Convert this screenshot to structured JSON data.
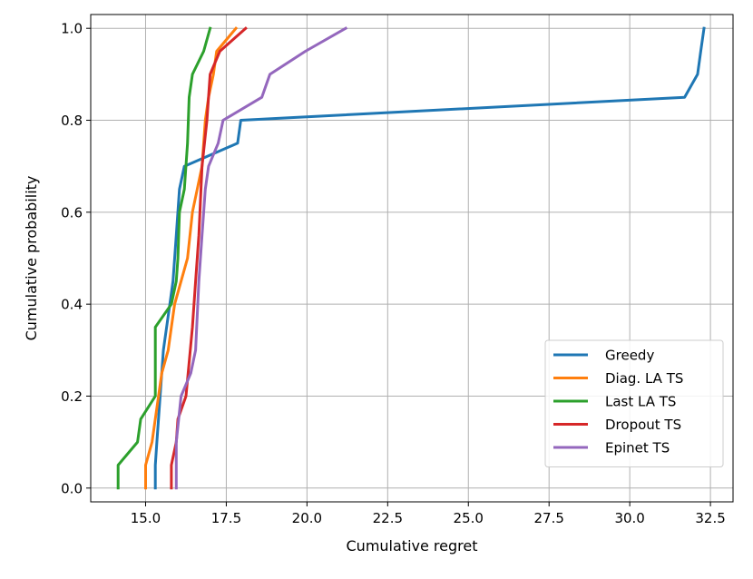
{
  "chart_data": {
    "type": "line",
    "title": "",
    "xlabel": "Cumulative regret",
    "ylabel": "Cumulative probability",
    "xlim": [
      13.3,
      33.2
    ],
    "ylim": [
      -0.03,
      1.03
    ],
    "xticks": [
      15.0,
      17.5,
      20.0,
      22.5,
      25.0,
      27.5,
      30.0,
      32.5
    ],
    "xtick_labels": [
      "15.0",
      "17.5",
      "20.0",
      "22.5",
      "25.0",
      "27.5",
      "30.0",
      "32.5"
    ],
    "yticks": [
      0.0,
      0.2,
      0.4,
      0.6,
      0.8,
      1.0
    ],
    "ytick_labels": [
      "0.0",
      "0.2",
      "0.4",
      "0.6",
      "0.8",
      "1.0"
    ],
    "grid": true,
    "legend_position": "lower-right",
    "series": [
      {
        "name": "Greedy",
        "color": "#1f77b4",
        "points": [
          [
            15.3,
            0.0
          ],
          [
            15.3,
            0.05
          ],
          [
            15.35,
            0.1
          ],
          [
            15.45,
            0.2
          ],
          [
            15.55,
            0.3
          ],
          [
            15.75,
            0.4
          ],
          [
            15.85,
            0.45
          ],
          [
            15.95,
            0.55
          ],
          [
            16.05,
            0.65
          ],
          [
            16.2,
            0.7
          ],
          [
            17.85,
            0.75
          ],
          [
            17.95,
            0.8
          ],
          [
            31.7,
            0.85
          ],
          [
            32.1,
            0.9
          ],
          [
            32.2,
            0.95
          ],
          [
            32.3,
            1.0
          ]
        ]
      },
      {
        "name": "Diag. LA TS",
        "color": "#ff7f0e",
        "points": [
          [
            15.0,
            0.0
          ],
          [
            15.0,
            0.05
          ],
          [
            15.2,
            0.1
          ],
          [
            15.5,
            0.25
          ],
          [
            15.7,
            0.3
          ],
          [
            15.8,
            0.35
          ],
          [
            15.9,
            0.4
          ],
          [
            16.1,
            0.45
          ],
          [
            16.3,
            0.5
          ],
          [
            16.45,
            0.6
          ],
          [
            16.6,
            0.65
          ],
          [
            16.75,
            0.7
          ],
          [
            16.85,
            0.8
          ],
          [
            16.95,
            0.85
          ],
          [
            17.1,
            0.9
          ],
          [
            17.2,
            0.95
          ],
          [
            17.8,
            1.0
          ]
        ]
      },
      {
        "name": "Last LA TS",
        "color": "#2ca02c",
        "points": [
          [
            14.15,
            0.0
          ],
          [
            14.15,
            0.05
          ],
          [
            14.75,
            0.1
          ],
          [
            14.85,
            0.15
          ],
          [
            15.3,
            0.2
          ],
          [
            15.3,
            0.35
          ],
          [
            15.8,
            0.4
          ],
          [
            15.95,
            0.45
          ],
          [
            16.0,
            0.5
          ],
          [
            16.05,
            0.6
          ],
          [
            16.2,
            0.65
          ],
          [
            16.3,
            0.75
          ],
          [
            16.35,
            0.85
          ],
          [
            16.45,
            0.9
          ],
          [
            16.8,
            0.95
          ],
          [
            17.0,
            1.0
          ]
        ]
      },
      {
        "name": "Dropout TS",
        "color": "#d62728",
        "points": [
          [
            15.8,
            0.0
          ],
          [
            15.8,
            0.05
          ],
          [
            15.95,
            0.1
          ],
          [
            16.0,
            0.15
          ],
          [
            16.25,
            0.2
          ],
          [
            16.45,
            0.35
          ],
          [
            16.55,
            0.45
          ],
          [
            16.65,
            0.55
          ],
          [
            16.75,
            0.7
          ],
          [
            16.9,
            0.8
          ],
          [
            17.0,
            0.9
          ],
          [
            17.3,
            0.95
          ],
          [
            18.1,
            1.0
          ]
        ]
      },
      {
        "name": "Epinet TS",
        "color": "#9467bd",
        "points": [
          [
            15.95,
            0.0
          ],
          [
            15.95,
            0.1
          ],
          [
            16.1,
            0.2
          ],
          [
            16.4,
            0.25
          ],
          [
            16.55,
            0.3
          ],
          [
            16.65,
            0.45
          ],
          [
            16.75,
            0.55
          ],
          [
            16.85,
            0.65
          ],
          [
            16.95,
            0.7
          ],
          [
            17.25,
            0.75
          ],
          [
            17.4,
            0.8
          ],
          [
            18.6,
            0.85
          ],
          [
            18.85,
            0.9
          ],
          [
            19.95,
            0.95
          ],
          [
            21.2,
            1.0
          ]
        ]
      }
    ]
  }
}
